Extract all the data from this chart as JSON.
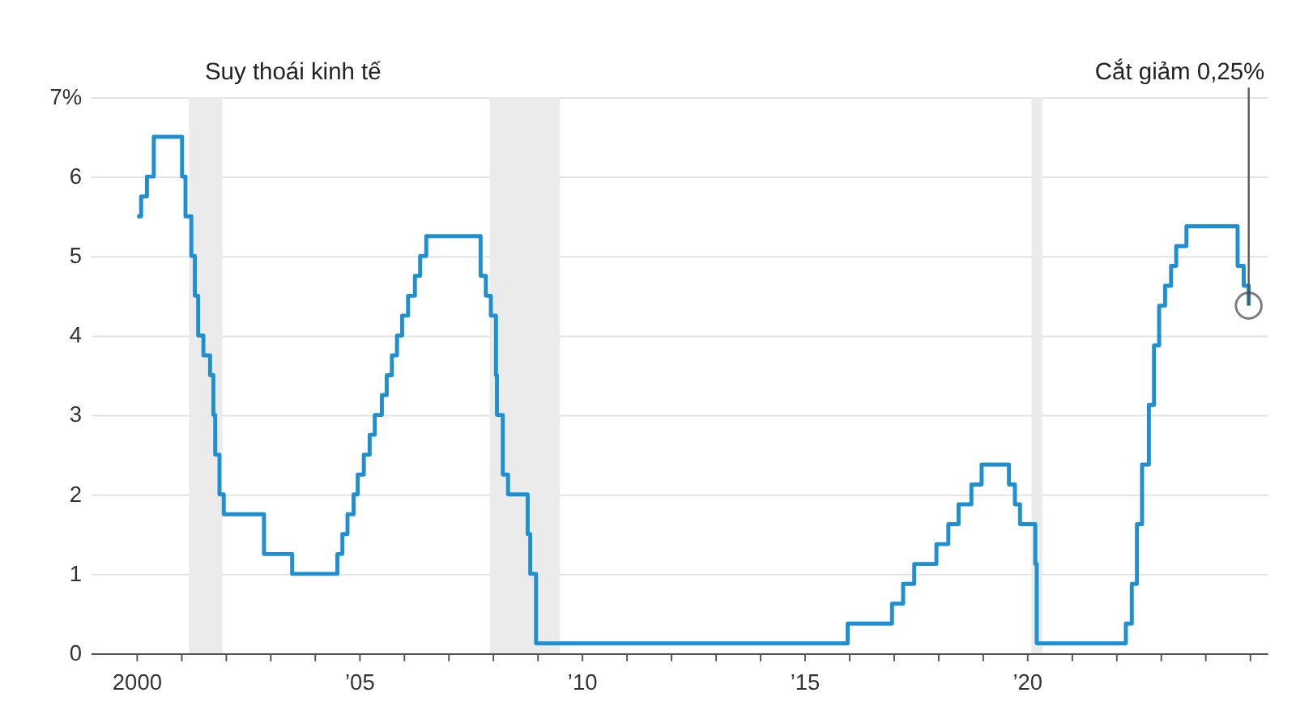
{
  "chart_data": {
    "type": "step",
    "line_style": "solid",
    "marker": "none",
    "grid": "y",
    "x": [
      "2000-01-01",
      "2000-02-02",
      "2000-03-21",
      "2000-05-16",
      "2001-01-03",
      "2001-01-31",
      "2001-03-20",
      "2001-04-18",
      "2001-05-15",
      "2001-06-27",
      "2001-08-21",
      "2001-09-17",
      "2001-10-02",
      "2001-11-06",
      "2001-12-11",
      "2002-11-06",
      "2003-06-25",
      "2004-06-30",
      "2004-08-10",
      "2004-09-21",
      "2004-11-10",
      "2004-12-14",
      "2005-02-02",
      "2005-03-22",
      "2005-05-03",
      "2005-06-30",
      "2005-08-09",
      "2005-09-20",
      "2005-11-01",
      "2005-12-13",
      "2006-01-31",
      "2006-03-28",
      "2006-05-10",
      "2006-06-29",
      "2007-09-18",
      "2007-10-31",
      "2007-12-11",
      "2008-01-22",
      "2008-01-30",
      "2008-03-18",
      "2008-04-30",
      "2008-10-08",
      "2008-10-29",
      "2008-12-16",
      "2015-12-16",
      "2016-12-14",
      "2017-03-15",
      "2017-06-14",
      "2017-12-13",
      "2018-03-21",
      "2018-06-13",
      "2018-09-26",
      "2018-12-19",
      "2019-07-31",
      "2019-09-18",
      "2019-10-30",
      "2020-03-03",
      "2020-03-15",
      "2022-03-16",
      "2022-05-04",
      "2022-06-15",
      "2022-07-27",
      "2022-09-21",
      "2022-11-02",
      "2022-12-14",
      "2023-02-01",
      "2023-03-22",
      "2023-05-03",
      "2023-07-26",
      "2024-09-18",
      "2024-11-07",
      "2024-12-18"
    ],
    "series": [
      {
        "color": "#1e8fd0",
        "values": [
          5.5,
          5.75,
          6.0,
          6.5,
          6.0,
          5.5,
          5.0,
          4.5,
          4.0,
          3.75,
          3.5,
          3.0,
          2.5,
          2.0,
          1.75,
          1.25,
          1.0,
          1.25,
          1.5,
          1.75,
          2.0,
          2.25,
          2.5,
          2.75,
          3.0,
          3.25,
          3.5,
          3.75,
          4.0,
          4.25,
          4.5,
          4.75,
          5.0,
          5.25,
          4.75,
          4.5,
          4.25,
          3.5,
          3.0,
          2.25,
          2.0,
          1.5,
          1.0,
          0.125,
          0.375,
          0.625,
          0.875,
          1.125,
          1.375,
          1.625,
          1.875,
          2.125,
          2.375,
          2.125,
          1.875,
          1.625,
          1.125,
          0.125,
          0.375,
          0.875,
          1.625,
          2.375,
          3.125,
          3.875,
          4.375,
          4.625,
          4.875,
          5.125,
          5.375,
          4.875,
          4.625,
          4.375
        ]
      }
    ],
    "xlim": [
      "1998-12-15",
      "2025-05-20"
    ],
    "xticks": [
      {
        "value": "2000",
        "label": "2000"
      },
      {
        "value": "2001",
        "label": null
      },
      {
        "value": "2002",
        "label": null
      },
      {
        "value": "2003",
        "label": null
      },
      {
        "value": "2004",
        "label": null
      },
      {
        "value": "2005",
        "label": "’05"
      },
      {
        "value": "2006",
        "label": null
      },
      {
        "value": "2007",
        "label": null
      },
      {
        "value": "2008",
        "label": null
      },
      {
        "value": "2009",
        "label": null
      },
      {
        "value": "2010",
        "label": "’10"
      },
      {
        "value": "2011",
        "label": null
      },
      {
        "value": "2012",
        "label": null
      },
      {
        "value": "2013",
        "label": null
      },
      {
        "value": "2014",
        "label": null
      },
      {
        "value": "2015",
        "label": "’15"
      },
      {
        "value": "2016",
        "label": null
      },
      {
        "value": "2017",
        "label": null
      },
      {
        "value": "2018",
        "label": null
      },
      {
        "value": "2019",
        "label": null
      },
      {
        "value": "2020",
        "label": "’20"
      },
      {
        "value": "2021",
        "label": null
      },
      {
        "value": "2022",
        "label": null
      },
      {
        "value": "2023",
        "label": null
      },
      {
        "value": "2024",
        "label": null
      },
      {
        "value": "2025",
        "label": null
      }
    ],
    "ylim": [
      0,
      7
    ],
    "yticks": [
      {
        "value": 0,
        "label": "0"
      },
      {
        "value": 1,
        "label": "1"
      },
      {
        "value": 2,
        "label": "2"
      },
      {
        "value": 3,
        "label": "3"
      },
      {
        "value": 4,
        "label": "4"
      },
      {
        "value": 5,
        "label": "5"
      },
      {
        "value": 6,
        "label": "6"
      },
      {
        "value": 7,
        "label": "7%"
      }
    ],
    "bands": [
      {
        "axis": "x",
        "from": "2001-03-01",
        "to": "2001-11-30",
        "label": "Suy thoái kinh tế",
        "color": "#ebebeb"
      },
      {
        "axis": "x",
        "from": "2007-12-01",
        "to": "2009-06-30",
        "color": "#ebebeb"
      },
      {
        "axis": "x",
        "from": "2020-02-01",
        "to": "2020-04-30",
        "color": "#ebebeb"
      }
    ],
    "annotations": [
      {
        "text": "Cắt giảm 0,25%",
        "x": "2024-12-18",
        "y": 4.375
      }
    ]
  }
}
